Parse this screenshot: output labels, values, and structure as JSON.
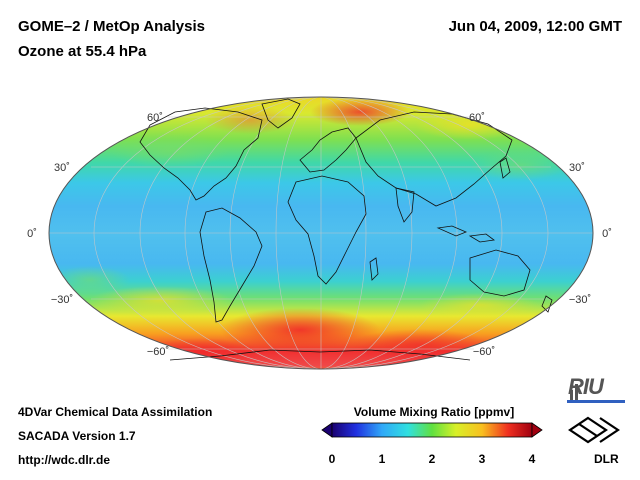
{
  "header": {
    "title": "GOME–2 / MetOp Analysis",
    "subtitle": "Ozone at 55.4 hPa",
    "datetime": "Jun 04, 2009, 12:00 GMT"
  },
  "footer": {
    "line1": "4DVar Chemical Data Assimilation",
    "line2": "SACADA Version 1.7",
    "line3": "http://wdc.dlr.de"
  },
  "map": {
    "projection": "Mollweide",
    "lat_labels": {
      "n60": "60˚",
      "n30": "30˚",
      "eq": "0˚",
      "s30": "−30˚",
      "s60": "−60˚"
    }
  },
  "colorbar": {
    "title": "Volume Mixing Ratio [ppmv]",
    "ticks": [
      "0",
      "1",
      "2",
      "3",
      "4"
    ],
    "min": 0,
    "max": 4
  },
  "logos": {
    "riu": "RIU",
    "dlr": "DLR"
  }
}
